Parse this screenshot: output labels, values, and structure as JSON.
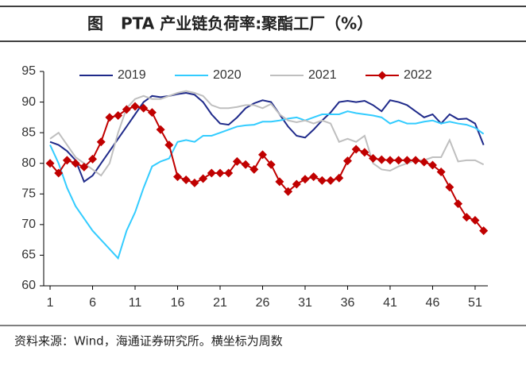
{
  "chart_data": {
    "type": "line",
    "label": "图",
    "title": "PTA 产业链负荷率:聚酯工厂（%）",
    "source": "资料来源：Wind，海通证券研究所。横坐标为周数",
    "x": [
      1,
      2,
      3,
      4,
      5,
      6,
      7,
      8,
      9,
      10,
      11,
      12,
      13,
      14,
      15,
      16,
      17,
      18,
      19,
      20,
      21,
      22,
      23,
      24,
      25,
      26,
      27,
      28,
      29,
      30,
      31,
      32,
      33,
      34,
      35,
      36,
      37,
      38,
      39,
      40,
      41,
      42,
      43,
      44,
      45,
      46,
      47,
      48,
      49,
      50,
      51,
      52
    ],
    "xlim": [
      0.25,
      52.5
    ],
    "xticks": [
      1,
      6,
      11,
      16,
      21,
      26,
      31,
      36,
      41,
      46,
      51
    ],
    "ylim": [
      60,
      95
    ],
    "yticks": [
      60,
      65,
      70,
      75,
      80,
      85,
      90,
      95
    ],
    "legend": "top",
    "series": [
      {
        "name": "2019",
        "color": "#1f2a8a",
        "values": [
          83.5,
          83,
          82,
          80.5,
          77,
          78,
          80,
          82,
          84,
          86,
          88,
          90,
          91,
          90.8,
          91,
          91.3,
          91.5,
          91.2,
          90,
          88,
          86.5,
          86.3,
          87.5,
          89,
          89.8,
          90.3,
          90,
          88,
          86,
          84.5,
          84.2,
          85.5,
          87,
          88.3,
          90,
          90.2,
          90,
          90.2,
          89.5,
          88.5,
          90.3,
          90,
          89.5,
          88.5,
          87.5,
          88,
          86.5,
          88,
          87.2,
          87.3,
          86.5,
          83
        ]
      },
      {
        "name": "2020",
        "color": "#33ccff",
        "values": [
          83,
          80,
          76,
          73,
          71,
          69,
          67.5,
          66,
          64.5,
          69,
          72,
          76,
          79.5,
          80.3,
          80.8,
          83.5,
          83.8,
          83.5,
          84.5,
          84.5,
          85,
          85.5,
          86,
          86.2,
          86.3,
          86.8,
          86.8,
          87,
          87.3,
          87.5,
          87,
          87.5,
          88,
          88,
          88,
          88.5,
          88.2,
          88,
          87.8,
          87.5,
          86.5,
          87,
          86.5,
          86.5,
          86.8,
          87,
          86.5,
          86.8,
          86.5,
          86.3,
          85.8,
          84.8
        ]
      },
      {
        "name": "2021",
        "color": "#bfbfbf",
        "values": [
          84,
          85,
          83,
          81,
          80,
          79,
          78,
          80,
          85,
          89,
          90.5,
          91,
          90.5,
          90.5,
          91,
          91.5,
          91.8,
          91.5,
          91,
          89.5,
          89,
          89,
          89.2,
          89.5,
          89.5,
          89,
          89.7,
          88,
          87,
          86.7,
          87,
          86.5,
          87,
          86.5,
          83.5,
          84,
          83.5,
          84.5,
          80,
          79,
          78.8,
          79.5,
          80,
          80.5,
          80.5,
          81,
          81,
          83.8,
          80.3,
          80.5,
          80.5,
          79.8
        ]
      },
      {
        "name": "2022",
        "color": "#c00000",
        "marker": "diamond",
        "values": [
          80,
          78.4,
          80.5,
          80,
          79.4,
          80.7,
          83.5,
          87.5,
          87.8,
          88.8,
          89.3,
          89,
          88.3,
          85.5,
          83,
          77.8,
          77.3,
          76.8,
          77.5,
          78.4,
          78.4,
          78.4,
          80.3,
          79.8,
          79,
          81.4,
          79.8,
          77,
          75.4,
          76.6,
          77.4,
          77.8,
          77.2,
          77.2,
          77.6,
          80.4,
          82.3,
          81.8,
          80.8,
          80.6,
          80.5,
          80.5,
          80.5,
          80.5,
          80.2,
          79.7,
          78.6,
          76.1,
          73.4,
          71.2,
          70.7,
          69
        ]
      }
    ]
  }
}
